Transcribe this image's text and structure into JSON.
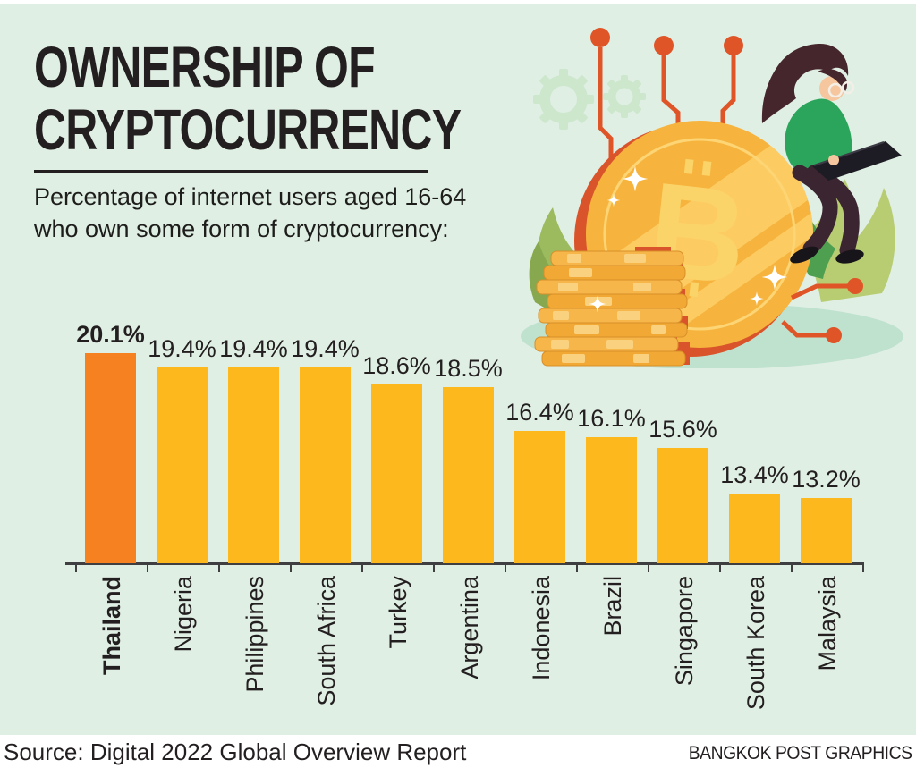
{
  "header": {
    "title_line1": "OWNERSHIP OF",
    "title_line2": "CRYPTOCURRENCY",
    "subtitle_line1": "Percentage of internet users aged 16-64",
    "subtitle_line2": "who own some form of cryptocurrency:"
  },
  "chart_data": {
    "type": "bar",
    "title": "OWNERSHIP OF CRYPTOCURRENCY",
    "subtitle": "Percentage of internet users aged 16-64 who own some form of cryptocurrency:",
    "categories": [
      "Thailand",
      "Nigeria",
      "Philippines",
      "South Africa",
      "Turkey",
      "Argentina",
      "Indonesia",
      "Brazil",
      "Singapore",
      "South Korea",
      "Malaysia"
    ],
    "values": [
      20.1,
      19.4,
      19.4,
      19.4,
      18.6,
      18.5,
      16.4,
      16.1,
      15.6,
      13.4,
      13.2
    ],
    "value_labels": [
      "20.1%",
      "19.4%",
      "19.4%",
      "19.4%",
      "18.6%",
      "18.5%",
      "16.4%",
      "16.1%",
      "15.6%",
      "13.4%",
      "13.2%"
    ],
    "unit": "%",
    "highlight_category": "Thailand",
    "ylim": [
      10.1,
      20.1
    ],
    "grid": false,
    "legend": "none",
    "bar_color": "#fdb81e",
    "highlight_color": "#f58120",
    "axis_color": "#3f3f41"
  },
  "footer": {
    "source": "Source: Digital 2022 Global Overview Report",
    "credit": "BANGKOK POST GRAPHICS"
  },
  "colors": {
    "background": "#e0efe4",
    "text": "#231f20",
    "footer_background": "#ffffff",
    "coin_gold": "#f6b43e",
    "coin_rim_red": "#d9542b",
    "circuit_orange": "#df5527",
    "leaf_green": "#9cba5e",
    "gear_pale_green": "#cde7cd",
    "sweater_green": "#2ca55c"
  },
  "illustration": {
    "elements": [
      "bitcoin-coin",
      "woman-with-laptop",
      "coin-stack",
      "gear",
      "circuit-line",
      "leaf",
      "sparkle",
      "shadow-ellipse"
    ]
  }
}
